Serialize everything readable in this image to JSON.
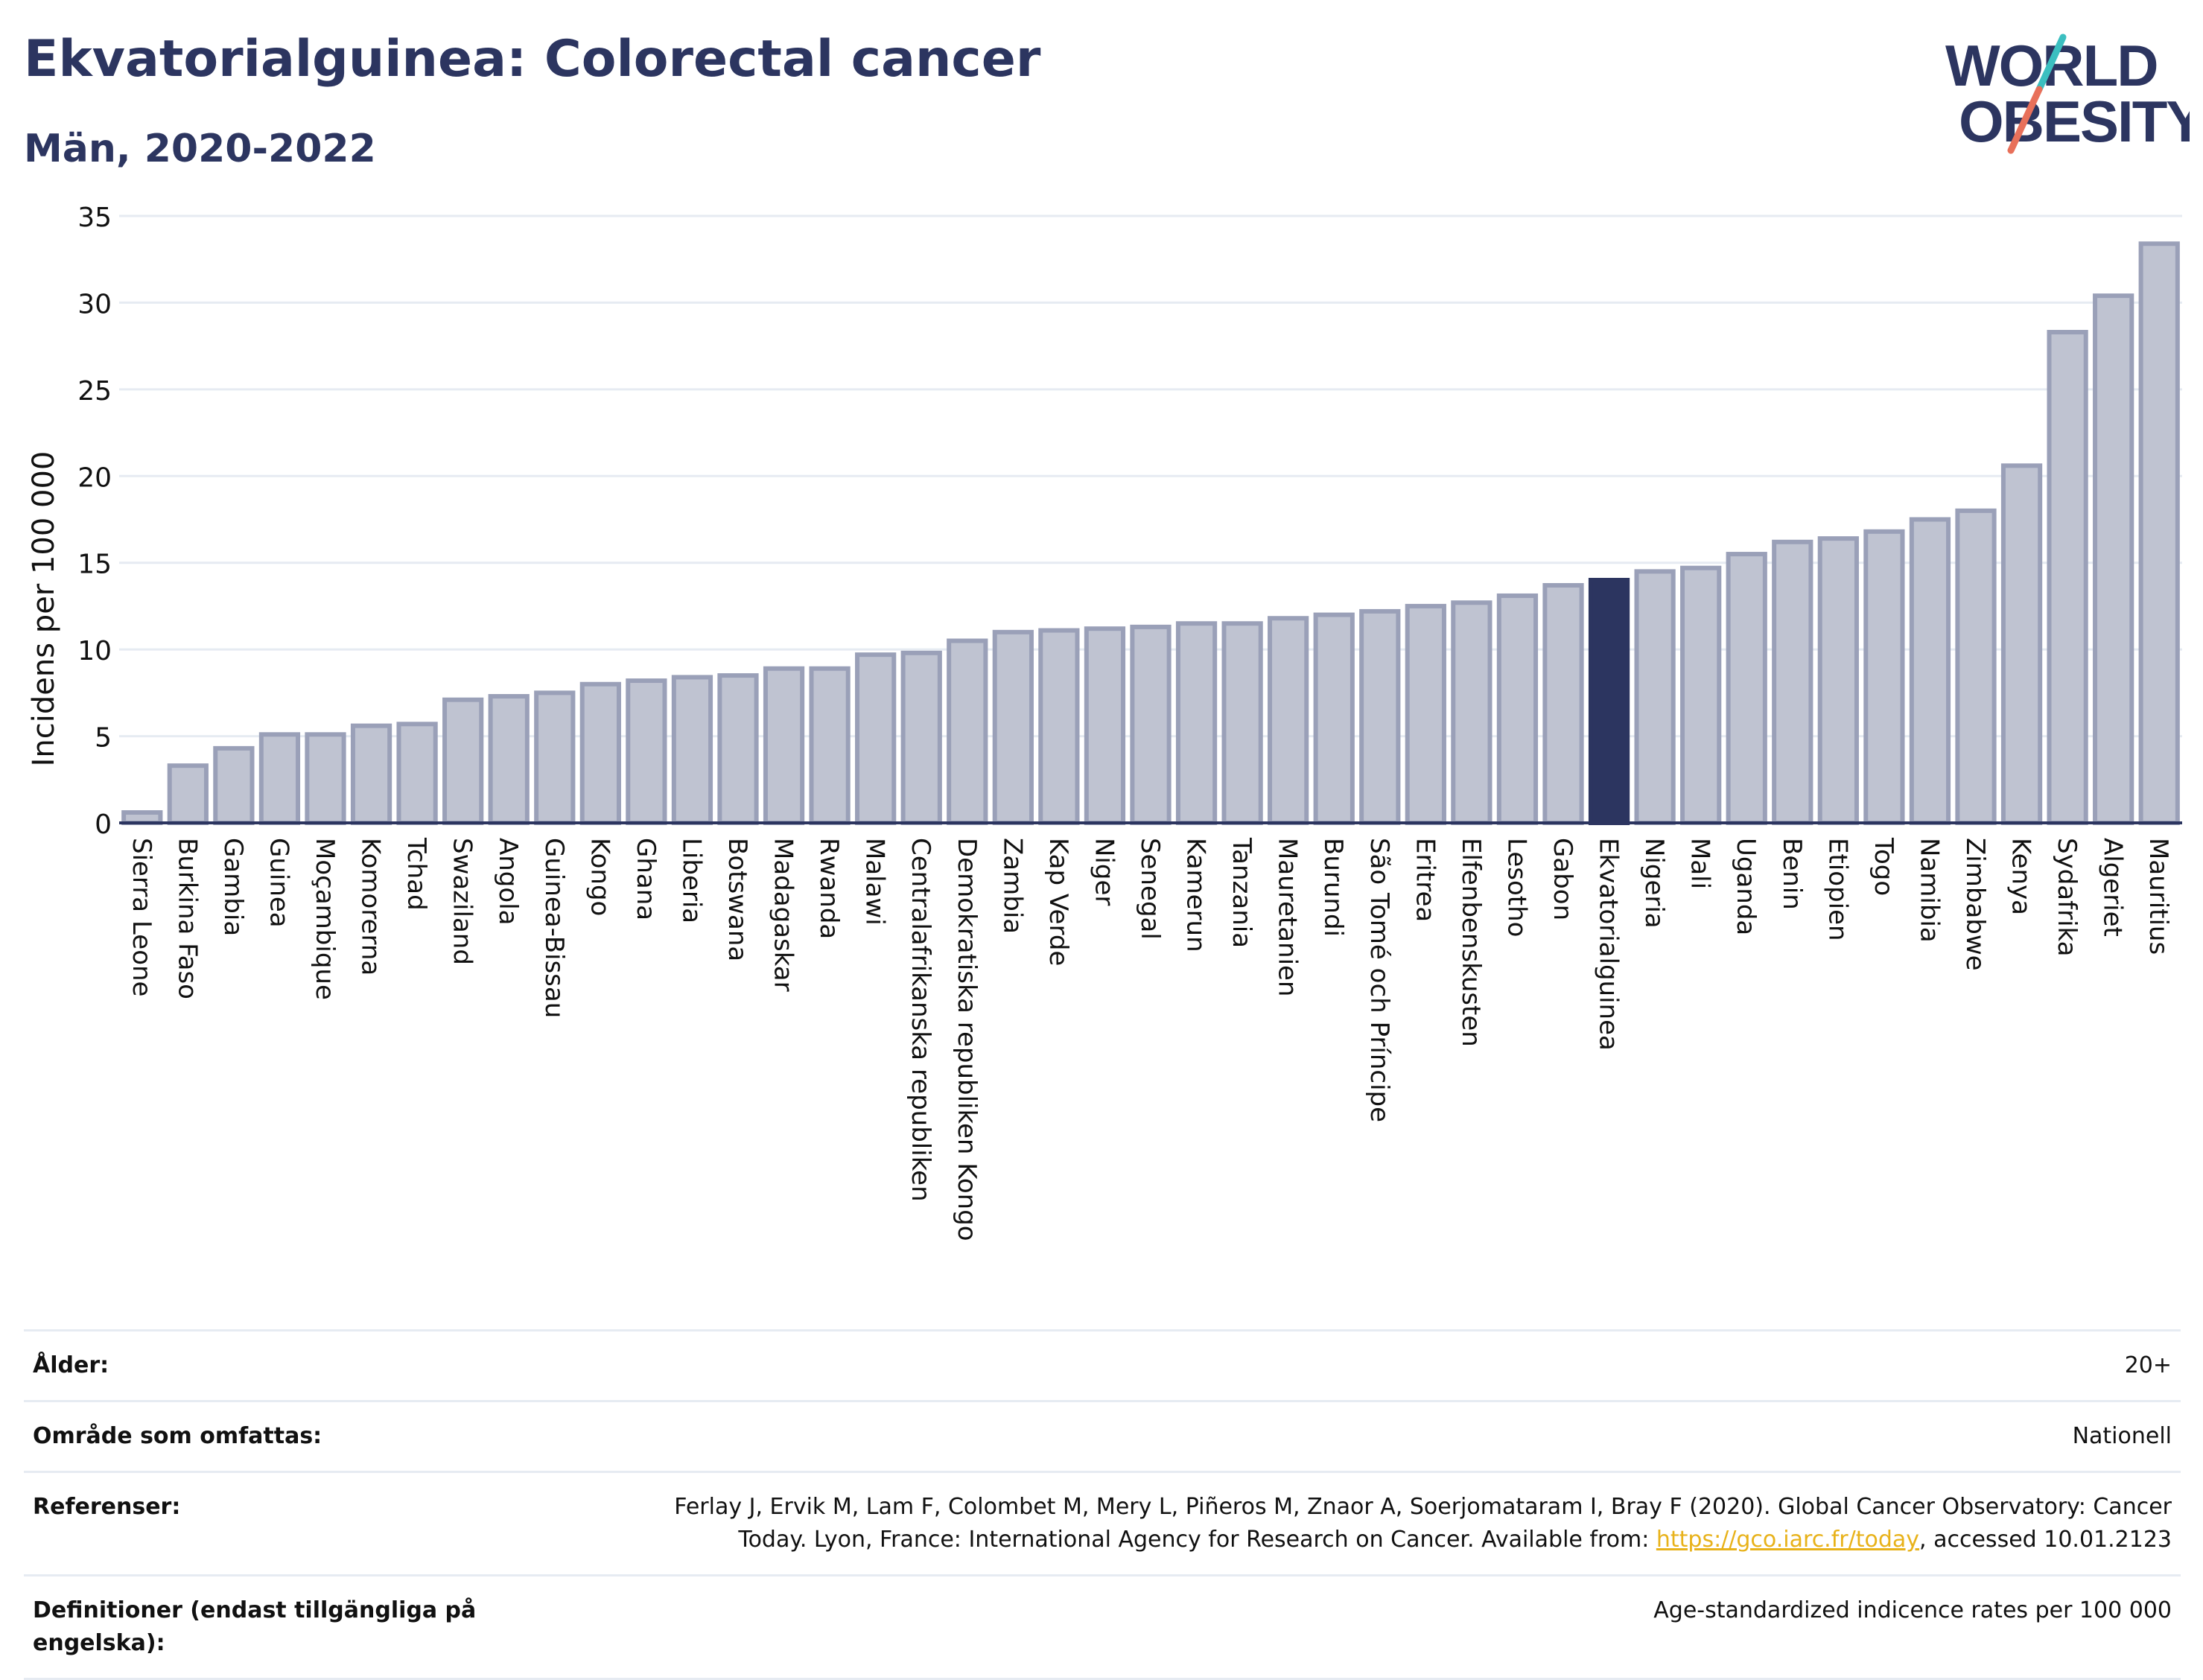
{
  "header": {
    "title": "Ekvatorialguinea: Colorectal cancer",
    "subtitle": "Män, 2020-2022"
  },
  "logo": {
    "line1": "WORLD",
    "line2": "OBESITY",
    "colors": {
      "text": "#2c3560",
      "slash_teal": "#3bbfc0",
      "slash_red": "#e8705a"
    }
  },
  "chart_data": {
    "type": "bar",
    "ylabel": "Incidens per 100 000",
    "xlabel": "",
    "ylim": [
      0,
      35
    ],
    "yticks": [
      0,
      5,
      10,
      15,
      20,
      25,
      30,
      35
    ],
    "grid": true,
    "highlight": "Ekvatorialguinea",
    "colors": {
      "bar": "#bfc3d1",
      "bar_edge": "#9aa0b8",
      "highlight": "#2c3560",
      "axis": "#2c3560",
      "grid": "#e6ebf2"
    },
    "categories": [
      "Sierra Leone",
      "Burkina Faso",
      "Gambia",
      "Guinea",
      "Moçambique",
      "Komorerna",
      "Tchad",
      "Swaziland",
      "Angola",
      "Guinea-Bissau",
      "Kongo",
      "Ghana",
      "Liberia",
      "Botswana",
      "Madagaskar",
      "Rwanda",
      "Malawi",
      "Centralafrikanska republiken",
      "Demokratiska republiken Kongo",
      "Zambia",
      "Kap Verde",
      "Niger",
      "Senegal",
      "Kamerun",
      "Tanzania",
      "Mauretanien",
      "Burundi",
      "São Tomé och Príncipe",
      "Eritrea",
      "Elfenbenskusten",
      "Lesotho",
      "Gabon",
      "Ekvatorialguinea",
      "Nigeria",
      "Mali",
      "Uganda",
      "Benin",
      "Etiopien",
      "Togo",
      "Namibia",
      "Zimbabwe",
      "Kenya",
      "Sydafrika",
      "Algeriet",
      "Mauritius"
    ],
    "values": [
      0.6,
      3.3,
      4.3,
      5.1,
      5.1,
      5.6,
      5.7,
      7.1,
      7.3,
      7.5,
      8.0,
      8.2,
      8.4,
      8.5,
      8.9,
      8.9,
      9.7,
      9.8,
      10.5,
      11.0,
      11.1,
      11.2,
      11.3,
      11.5,
      11.5,
      11.8,
      12.0,
      12.2,
      12.5,
      12.7,
      13.1,
      13.7,
      14.0,
      14.5,
      14.7,
      15.5,
      16.2,
      16.4,
      16.8,
      17.5,
      18.0,
      20.6,
      28.3,
      30.4,
      33.4
    ]
  },
  "meta": {
    "age_label": "Ålder:",
    "age_value": "20+",
    "coverage_label": "Område som omfattas:",
    "coverage_value": "Nationell",
    "references_label": "Referenser:",
    "references_line1": "Ferlay J, Ervik M, Lam F, Colombet M, Mery L, Piñeros M, Znaor A, Soerjomataram I, Bray F (2020). Global Cancer Observatory: Cancer",
    "references_line2_pre": "Today. Lyon, France: International Agency for Research on Cancer. Available from: ",
    "references_link": "https://gco.iarc.fr/today",
    "references_line2_post": ", accessed 10.01.2123",
    "definitions_label": "Definitioner (endast tillgängliga på engelska):",
    "definitions_value": "Age-standardized indicence rates per 100 000"
  }
}
